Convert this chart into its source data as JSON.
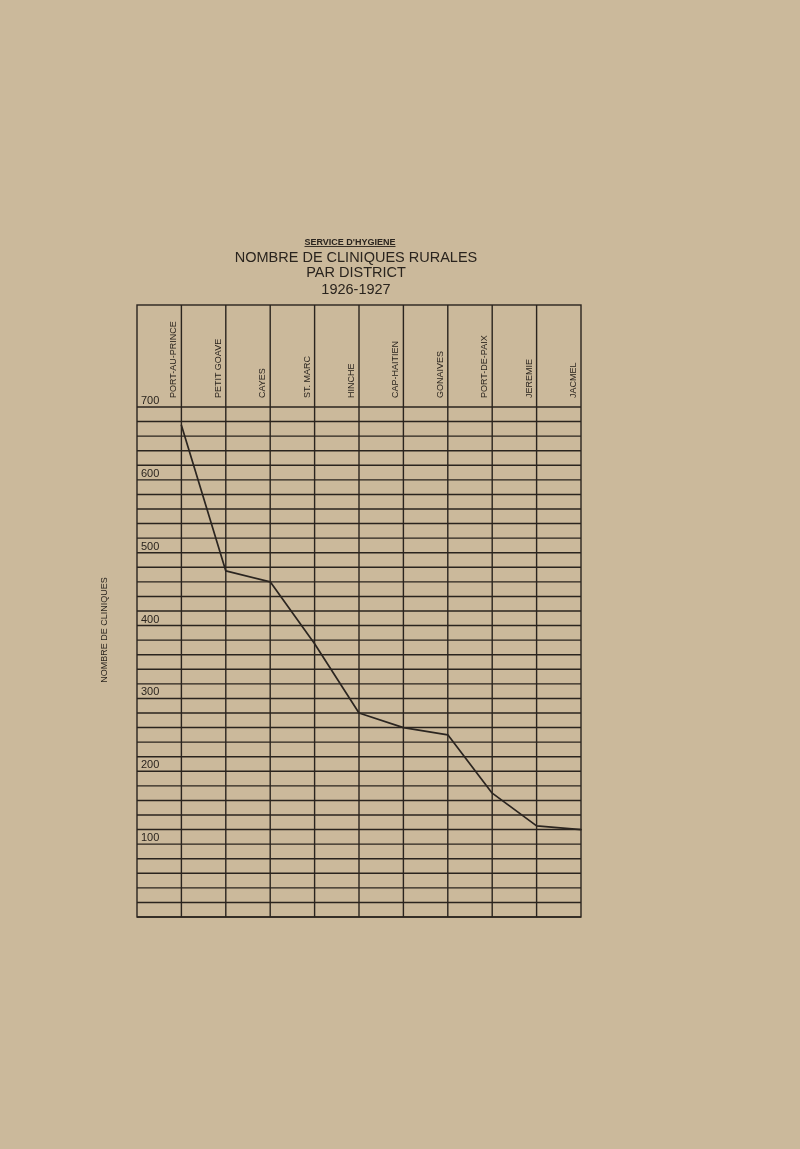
{
  "chart_data": {
    "type": "line",
    "title": "NOMBRE DE CLINIQUES RURALES PAR DISTRICT",
    "subtitle": "1926-1927",
    "ylabel": "NOMBRE DE CLINIQUES",
    "annotations": [
      "SERVICE D'HYGIENE"
    ],
    "categories": [
      "PORT-AU-PRINCE",
      "PETIT GOAVE",
      "CAYES",
      "ST. MARC",
      "HINCHE",
      "CAP-HAITIEN",
      "GONAIVES",
      "PORT-DE-PAIX",
      "JEREMIE",
      "JACMEL"
    ],
    "values": [
      675,
      475,
      460,
      375,
      280,
      260,
      250,
      170,
      125,
      120
    ],
    "color": "#2b2520",
    "ylim": [
      0,
      840
    ],
    "yticks": [
      {
        "value": 0,
        "label": null
      },
      {
        "value": 20,
        "label": null
      },
      {
        "value": 40,
        "label": null
      },
      {
        "value": 60,
        "label": null
      },
      {
        "value": 80,
        "label": null
      },
      100,
      {
        "value": 120,
        "label": null
      },
      {
        "value": 140,
        "label": null
      },
      {
        "value": 160,
        "label": null
      },
      {
        "value": 180,
        "label": null
      },
      200,
      {
        "value": 220,
        "label": null
      },
      {
        "value": 240,
        "label": null
      },
      {
        "value": 260,
        "label": null
      },
      {
        "value": 280,
        "label": null
      },
      300,
      {
        "value": 320,
        "label": null
      },
      {
        "value": 340,
        "label": null
      },
      {
        "value": 360,
        "label": null
      },
      {
        "value": 380,
        "label": null
      },
      400,
      {
        "value": 420,
        "label": null
      },
      {
        "value": 440,
        "label": null
      },
      {
        "value": 460,
        "label": null
      },
      {
        "value": 480,
        "label": null
      },
      500,
      {
        "value": 520,
        "label": null
      },
      {
        "value": 540,
        "label": null
      },
      {
        "value": 560,
        "label": null
      },
      {
        "value": 580,
        "label": null
      },
      600,
      {
        "value": 620,
        "label": null
      },
      {
        "value": 640,
        "label": null
      },
      {
        "value": 660,
        "label": null
      },
      {
        "value": 680,
        "label": null
      },
      700
    ],
    "grid": true
  }
}
